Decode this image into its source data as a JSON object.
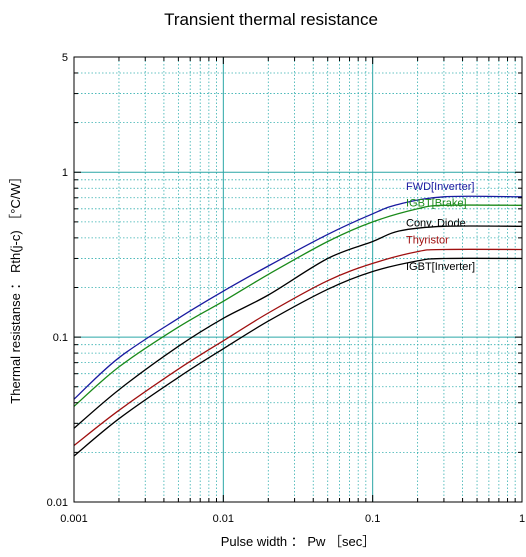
{
  "chart_data": {
    "type": "line",
    "title": "Transient thermal resistance",
    "xlabel": "Pulse width ： Pw ［sec］",
    "ylabel": "Thermal resistanse ： Rth(j-c) ［°C/W］",
    "x_scale": "log",
    "y_scale": "log",
    "xlim": [
      0.001,
      1
    ],
    "ylim": [
      0.01,
      5
    ],
    "grid": true,
    "x_ticks": [
      {
        "value": 0.001,
        "label": "0.001"
      },
      {
        "value": 0.01,
        "label": "0.01"
      },
      {
        "value": 0.1,
        "label": "0.1"
      },
      {
        "value": 1,
        "label": "1"
      }
    ],
    "y_ticks": [
      {
        "value": 0.01,
        "label": "0.01"
      },
      {
        "value": 0.1,
        "label": "0.1"
      },
      {
        "value": 1,
        "label": "1"
      },
      {
        "value": 5,
        "label": "5"
      }
    ],
    "series": [
      {
        "name": "FWD[Inverter]",
        "color": "#1a1aa0",
        "x": [
          0.001,
          0.002,
          0.005,
          0.01,
          0.02,
          0.05,
          0.1,
          0.15,
          0.3,
          1
        ],
        "y": [
          0.042,
          0.075,
          0.13,
          0.19,
          0.27,
          0.42,
          0.56,
          0.64,
          0.71,
          0.71
        ]
      },
      {
        "name": "IGBT[Brake]",
        "color": "#1a8a1a",
        "x": [
          0.001,
          0.002,
          0.005,
          0.01,
          0.02,
          0.05,
          0.1,
          0.2,
          0.3,
          1
        ],
        "y": [
          0.038,
          0.066,
          0.115,
          0.165,
          0.24,
          0.38,
          0.5,
          0.6,
          0.63,
          0.63
        ]
      },
      {
        "name": "Conv. Diode",
        "color": "#000000",
        "x": [
          0.001,
          0.002,
          0.005,
          0.01,
          0.02,
          0.05,
          0.1,
          0.15,
          0.3,
          1
        ],
        "y": [
          0.028,
          0.048,
          0.088,
          0.13,
          0.18,
          0.3,
          0.38,
          0.44,
          0.47,
          0.47
        ]
      },
      {
        "name": "Thyristor",
        "color": "#a01010",
        "x": [
          0.001,
          0.002,
          0.005,
          0.01,
          0.02,
          0.05,
          0.1,
          0.2,
          0.3,
          1
        ],
        "y": [
          0.022,
          0.036,
          0.064,
          0.095,
          0.14,
          0.22,
          0.28,
          0.33,
          0.34,
          0.34
        ]
      },
      {
        "name": "IGBT[Inverter]",
        "color": "#000000",
        "x": [
          0.001,
          0.002,
          0.005,
          0.01,
          0.02,
          0.05,
          0.1,
          0.2,
          0.3,
          1
        ],
        "y": [
          0.019,
          0.032,
          0.057,
          0.085,
          0.125,
          0.195,
          0.25,
          0.29,
          0.3,
          0.3
        ]
      }
    ]
  }
}
